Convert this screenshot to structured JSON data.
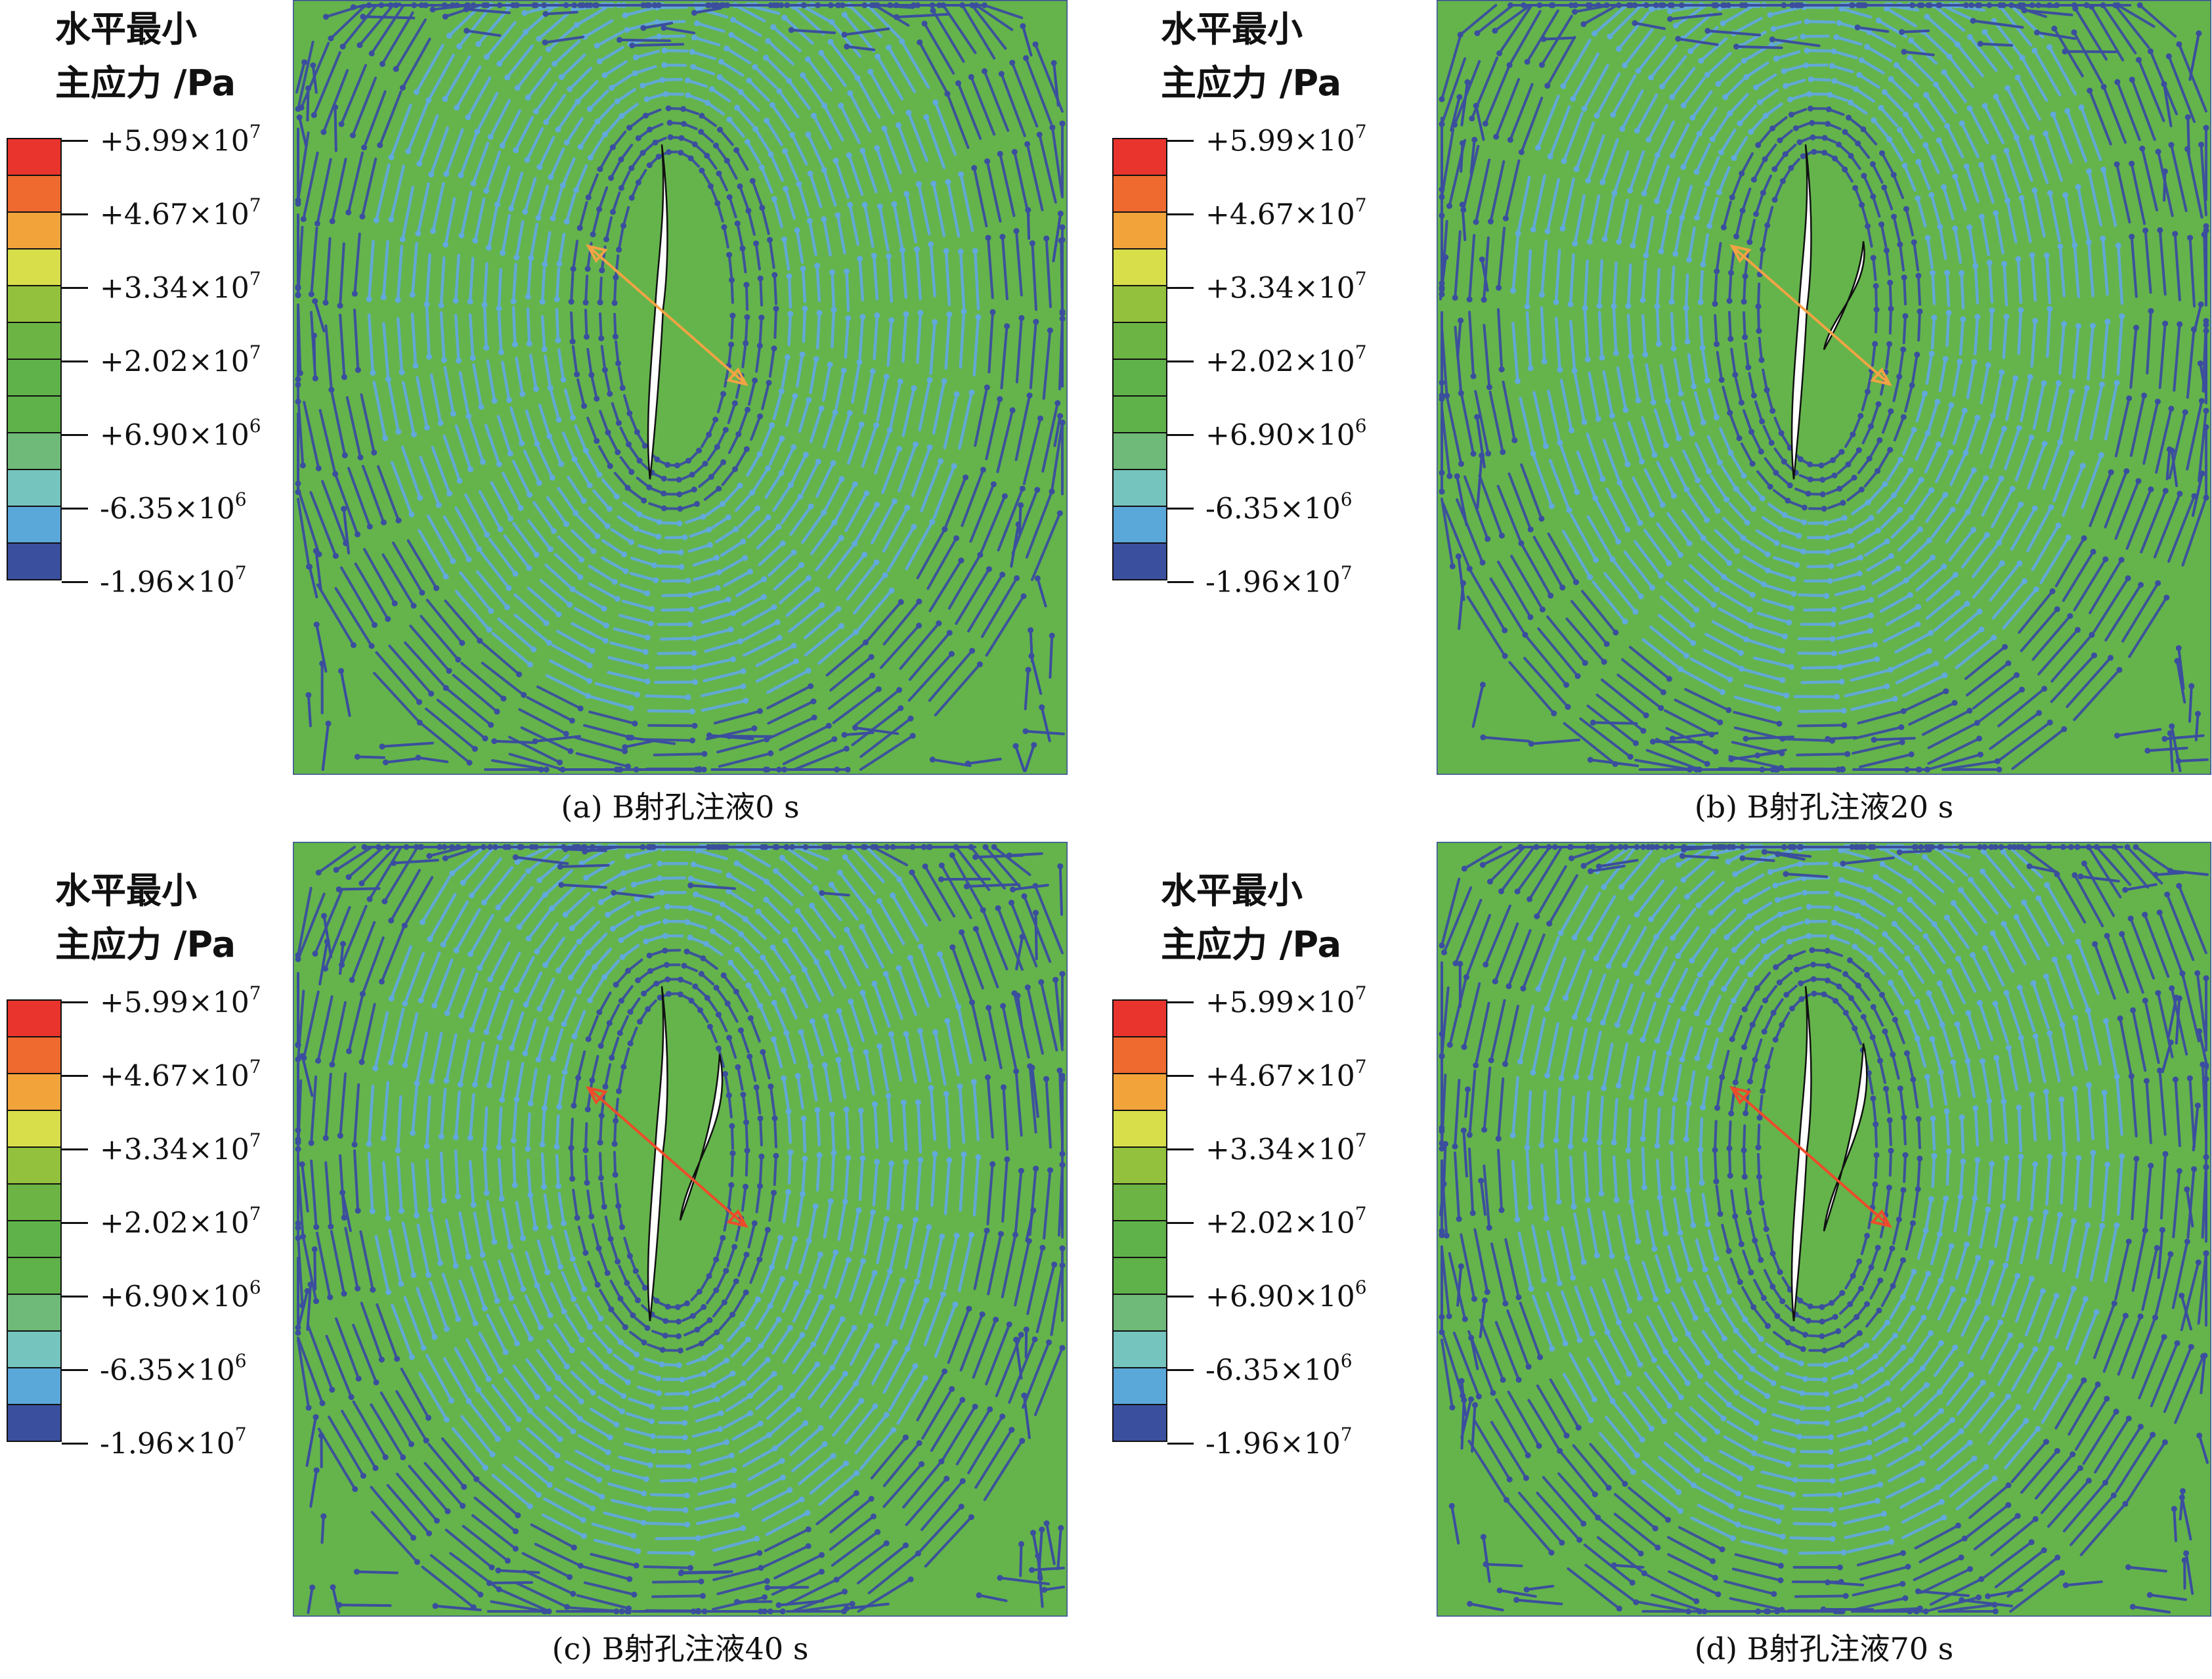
{
  "legend": {
    "title_line1": "水平最小",
    "title_line2": "主应力 /Pa",
    "levels": [
      {
        "mantissa": "+5.99×10",
        "exp": "7",
        "color": "#e8342c"
      },
      {
        "mantissa": "+4.67×10",
        "exp": "7",
        "color": "#ee6a2f"
      },
      {
        "mantissa": "+3.34×10",
        "exp": "7",
        "color": "#f2a43a"
      },
      {
        "mantissa": "+2.02×10",
        "exp": "7",
        "color": "#d8de4a"
      },
      {
        "mantissa": "+6.90×10",
        "exp": "6",
        "color": "#93c13d"
      },
      {
        "mantissa": "-6.35×10",
        "exp": "6",
        "color": "#6cb544"
      },
      {
        "mantissa": "-1.96×10",
        "exp": "7",
        "color": "#5fb14a"
      }
    ],
    "extra_colors": [
      "#5fb14a",
      "#6fba78",
      "#75c4bd",
      "#5aa7da",
      "#3a4f9d"
    ]
  },
  "colors": {
    "field": "#64b44b",
    "stream_light": "#62a9dc",
    "stream_dark": "#3b4e9e",
    "fracture": "#ffffff",
    "arrow_orange": "#f3a344",
    "arrow_red": "#ee4b2b"
  },
  "panels": [
    {
      "caption": "(a) B射孔注液0 s",
      "stage": 0
    },
    {
      "caption": "(b) B射孔注液20 s",
      "stage": 1
    },
    {
      "caption": "(c) B射孔注液40 s",
      "stage": 2
    },
    {
      "caption": "(d) B射孔注液70 s",
      "stage": 3
    }
  ]
}
